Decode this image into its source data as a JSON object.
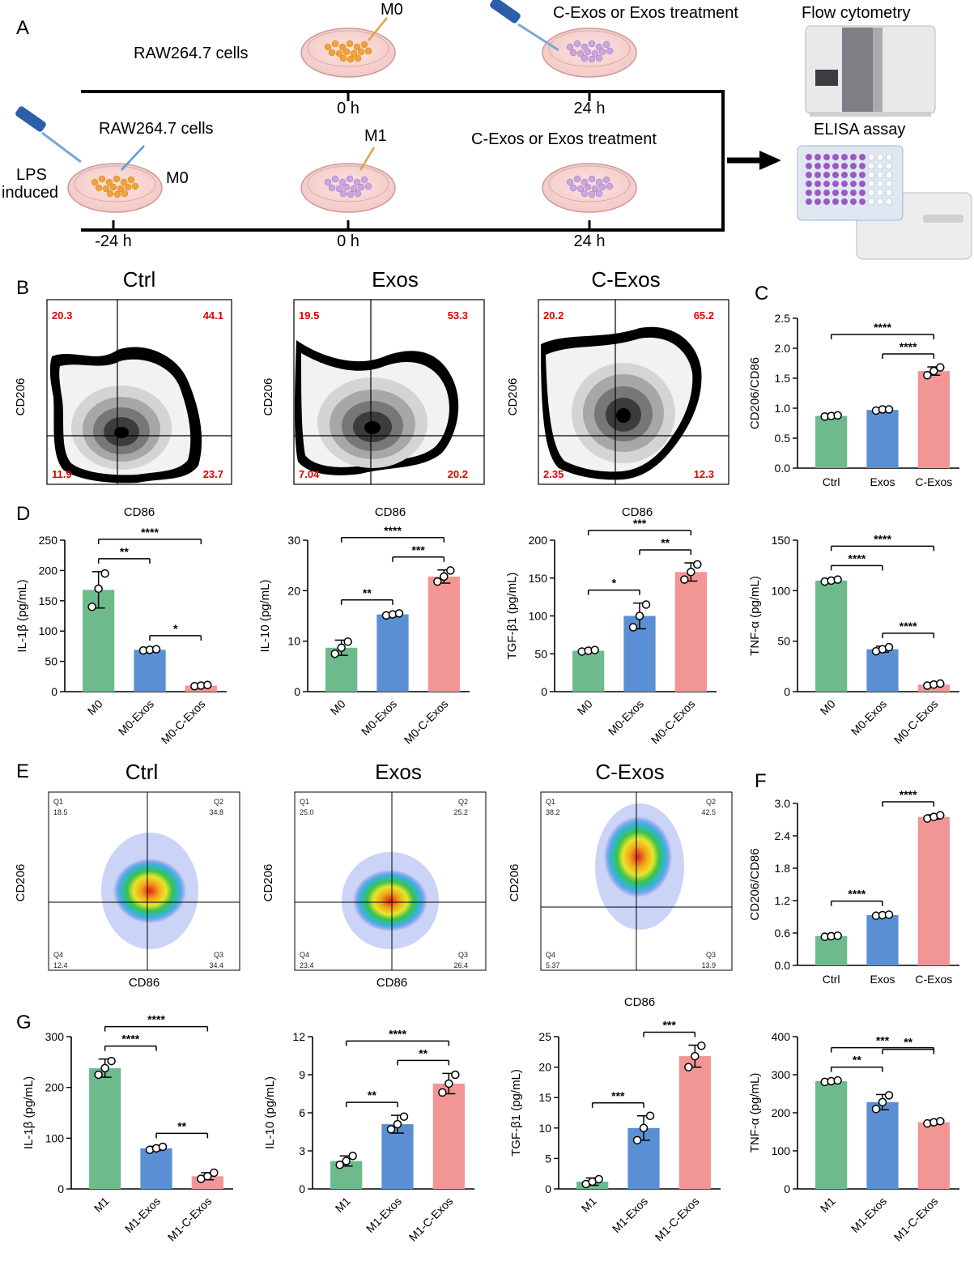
{
  "figure": {
    "panels": {
      "A": "A",
      "B": "B",
      "C": "C",
      "D": "D",
      "E": "E",
      "F": "F",
      "G": "G"
    },
    "scheme": {
      "top": {
        "cells_label": "RAW264.7 cells",
        "m0_label": "M0",
        "treatment_label": "C-Exos or Exos treatment",
        "time_0": "0 h",
        "time_24": "24 h"
      },
      "bottom": {
        "cells_label": "RAW264.7 cells",
        "lps_label_1": "LPS",
        "lps_label_2": "induced",
        "m0_label": "M0",
        "m1_label": "M1",
        "treatment_label": "C-Exos or Exos treatment",
        "time_neg24": "-24 h",
        "time_0": "0 h",
        "time_24": "24 h"
      },
      "flow_label": "Flow cytometry",
      "elisa_label": "ELISA assay"
    },
    "flow_B": {
      "xlabel": "CD86",
      "ylabel": "CD206",
      "plots": [
        {
          "title": "Ctrl",
          "q1": "20.3",
          "q2": "44.1",
          "q4": "11.9",
          "q3": "23.7"
        },
        {
          "title": "Exos",
          "q1": "19.5",
          "q2": "53.3",
          "q4": "7.04",
          "q3": "20.2"
        },
        {
          "title": "C-Exos",
          "q1": "20.2",
          "q2": "65.2",
          "q4": "2.35",
          "q3": "12.3"
        }
      ]
    },
    "flow_E": {
      "xlabel": "CD86",
      "ylabel": "CD206",
      "plots": [
        {
          "title": "Ctrl",
          "q1n": "Q1",
          "q1": "18.5",
          "q2n": "Q2",
          "q2": "34.8",
          "q4n": "Q4",
          "q4": "12.4",
          "q3n": "Q3",
          "q3": "34.4"
        },
        {
          "title": "Exos",
          "q1n": "Q1",
          "q1": "25.0",
          "q2n": "Q2",
          "q2": "25.2",
          "q4n": "Q4",
          "q4": "23.4",
          "q3n": "Q3",
          "q3": "26.4"
        },
        {
          "title": "C-Exos",
          "q1n": "Q1",
          "q1": "38.2",
          "q2n": "Q2",
          "q2": "42.5",
          "q4n": "Q4",
          "q4": "5.37",
          "q3n": "Q3",
          "q3": "13.9"
        }
      ]
    },
    "colors": {
      "green": "#6dbb8c",
      "blue": "#5b8fd4",
      "red": "#f29595"
    }
  },
  "chart_data": [
    {
      "id": "C",
      "type": "bar",
      "ylabel": "CD206/CD86",
      "categories": [
        "Ctrl",
        "Exos",
        "C-Exos"
      ],
      "values": [
        0.87,
        0.97,
        1.62
      ],
      "errors": [
        0.02,
        0.03,
        0.07
      ],
      "points": [
        [
          0.86,
          0.87,
          0.88
        ],
        [
          0.96,
          0.98,
          0.98
        ],
        [
          1.55,
          1.62,
          1.68
        ]
      ],
      "ylim": [
        0,
        2.5
      ],
      "yticks": [
        "0.0",
        "0.5",
        "1.0",
        "1.5",
        "2.0",
        "2.5"
      ],
      "rotate": false,
      "brackets": [
        {
          "from": 0,
          "to": 2,
          "label": "****"
        },
        {
          "from": 1,
          "to": 2,
          "label": "****"
        }
      ]
    },
    {
      "id": "D1",
      "type": "bar",
      "ylabel": "IL-1β (pg/mL)",
      "categories": [
        "M0",
        "M0-Exos",
        "M0-C-Exos"
      ],
      "values": [
        168,
        69,
        10
      ],
      "errors": [
        30,
        2,
        2
      ],
      "points": [
        [
          140,
          170,
          195
        ],
        [
          68,
          69,
          70
        ],
        [
          9,
          10,
          11
        ]
      ],
      "ylim": [
        0,
        250
      ],
      "yticks": [
        "0",
        "50",
        "100",
        "150",
        "200",
        "250"
      ],
      "rotate": true,
      "brackets": [
        {
          "from": 0,
          "to": 2,
          "label": "****"
        },
        {
          "from": 0,
          "to": 1,
          "label": "**"
        },
        {
          "from": 1,
          "to": 2,
          "label": "*"
        }
      ]
    },
    {
      "id": "D2",
      "type": "bar",
      "ylabel": "IL-10 (pg/mL)",
      "categories": [
        "M0",
        "M0-Exos",
        "M0-C-Exos"
      ],
      "values": [
        8.7,
        15.3,
        22.8
      ],
      "errors": [
        1.5,
        0.3,
        1.3
      ],
      "points": [
        [
          7.5,
          8.7,
          9.9
        ],
        [
          15.1,
          15.3,
          15.5
        ],
        [
          21.8,
          22.8,
          24.0
        ]
      ],
      "ylim": [
        0,
        30
      ],
      "yticks": [
        "0",
        "10",
        "20",
        "30"
      ],
      "rotate": true,
      "brackets": [
        {
          "from": 0,
          "to": 2,
          "label": "****"
        },
        {
          "from": 1,
          "to": 2,
          "label": "***"
        },
        {
          "from": 0,
          "to": 1,
          "label": "**"
        }
      ]
    },
    {
      "id": "D3",
      "type": "bar",
      "ylabel": "TGF-β1 (pg/mL)",
      "categories": [
        "M0",
        "M0-Exos",
        "M0-C-Exos"
      ],
      "values": [
        54,
        100,
        158
      ],
      "errors": [
        2,
        17,
        12
      ],
      "points": [
        [
          53,
          54,
          55
        ],
        [
          85,
          100,
          115
        ],
        [
          148,
          158,
          168
        ]
      ],
      "ylim": [
        0,
        200
      ],
      "yticks": [
        "0",
        "50",
        "100",
        "150",
        "200"
      ],
      "rotate": true,
      "brackets": [
        {
          "from": 0,
          "to": 2,
          "label": "***"
        },
        {
          "from": 1,
          "to": 2,
          "label": "**"
        },
        {
          "from": 0,
          "to": 1,
          "label": "*"
        }
      ]
    },
    {
      "id": "D4",
      "type": "bar",
      "ylabel": "TNF-α (pg/mL)",
      "categories": [
        "M0",
        "M0-Exos",
        "M0-C-Exos"
      ],
      "values": [
        110,
        42,
        7
      ],
      "errors": [
        2,
        3,
        1.5
      ],
      "points": [
        [
          109,
          110,
          111
        ],
        [
          40,
          42,
          44
        ],
        [
          6,
          7,
          8
        ]
      ],
      "ylim": [
        0,
        150
      ],
      "yticks": [
        "0",
        "50",
        "100",
        "150"
      ],
      "rotate": true,
      "brackets": [
        {
          "from": 0,
          "to": 2,
          "label": "****"
        },
        {
          "from": 0,
          "to": 1,
          "label": "****"
        },
        {
          "from": 1,
          "to": 2,
          "label": "****"
        }
      ]
    },
    {
      "id": "F",
      "type": "bar",
      "ylabel": "CD206/CD86",
      "categories": [
        "Ctrl",
        "Exos",
        "C-Exos"
      ],
      "values": [
        0.54,
        0.93,
        2.75
      ],
      "errors": [
        0.02,
        0.02,
        0.04
      ],
      "points": [
        [
          0.53,
          0.54,
          0.55
        ],
        [
          0.92,
          0.93,
          0.94
        ],
        [
          2.72,
          2.75,
          2.78
        ]
      ],
      "ylim": [
        0,
        3.0
      ],
      "yticks": [
        "0.0",
        "0.6",
        "1.2",
        "1.8",
        "2.4",
        "3.0"
      ],
      "rotate": false,
      "brackets": [
        {
          "from": 1,
          "to": 2,
          "label": "****"
        },
        {
          "from": 0,
          "to": 1,
          "label": "****"
        }
      ]
    },
    {
      "id": "G1",
      "type": "bar",
      "ylabel": "IL-1β (pg/mL)",
      "categories": [
        "M1",
        "M1-Exos",
        "M1-C-Exos"
      ],
      "values": [
        238,
        80,
        25
      ],
      "errors": [
        18,
        4,
        7
      ],
      "points": [
        [
          225,
          238,
          252
        ],
        [
          77,
          80,
          83
        ],
        [
          20,
          25,
          32
        ]
      ],
      "ylim": [
        0,
        300
      ],
      "yticks": [
        "0",
        "100",
        "200",
        "300"
      ],
      "rotate": true,
      "brackets": [
        {
          "from": 0,
          "to": 2,
          "label": "****"
        },
        {
          "from": 0,
          "to": 1,
          "label": "****"
        },
        {
          "from": 1,
          "to": 2,
          "label": "**"
        }
      ]
    },
    {
      "id": "G2",
      "type": "bar",
      "ylabel": "IL-10 (pg/mL)",
      "categories": [
        "M1",
        "M1-Exos",
        "M1-C-Exos"
      ],
      "values": [
        2.2,
        5.1,
        8.3
      ],
      "errors": [
        0.4,
        0.7,
        0.8
      ],
      "points": [
        [
          1.9,
          2.2,
          2.6
        ],
        [
          4.7,
          5.1,
          5.7
        ],
        [
          7.6,
          8.3,
          9.0
        ]
      ],
      "ylim": [
        0,
        12
      ],
      "yticks": [
        "0",
        "3",
        "6",
        "9",
        "12"
      ],
      "rotate": true,
      "brackets": [
        {
          "from": 0,
          "to": 2,
          "label": "****"
        },
        {
          "from": 1,
          "to": 2,
          "label": "**"
        },
        {
          "from": 0,
          "to": 1,
          "label": "**"
        }
      ]
    },
    {
      "id": "G3",
      "type": "bar",
      "ylabel": "TGF-β1 (pg/mL)",
      "categories": [
        "M1",
        "M1-Exos",
        "M1-C-Exos"
      ],
      "values": [
        1.2,
        10,
        21.8
      ],
      "errors": [
        0.6,
        2.0,
        1.8
      ],
      "points": [
        [
          0.8,
          1.2,
          1.6
        ],
        [
          8,
          10,
          12
        ],
        [
          20,
          21.8,
          23.5
        ]
      ],
      "ylim": [
        0,
        25
      ],
      "yticks": [
        "0",
        "5",
        "10",
        "15",
        "20",
        "25"
      ],
      "rotate": true,
      "brackets": [
        {
          "from": 1,
          "to": 2,
          "label": "***"
        },
        {
          "from": 0,
          "to": 1,
          "label": "***"
        }
      ]
    },
    {
      "id": "G4",
      "type": "bar",
      "ylabel": "TNF-α (pg/mL)",
      "categories": [
        "M1",
        "M1-Exos",
        "M1-C-Exos"
      ],
      "values": [
        283,
        228,
        175
      ],
      "errors": [
        3,
        20,
        5
      ],
      "points": [
        [
          281,
          283,
          285
        ],
        [
          210,
          228,
          246
        ],
        [
          172,
          175,
          178
        ]
      ],
      "ylim": [
        0,
        400
      ],
      "yticks": [
        "0",
        "100",
        "200",
        "300",
        "400"
      ],
      "rotate": true,
      "brackets": [
        {
          "from": 0,
          "to": 2,
          "label": "***"
        },
        {
          "from": 0,
          "to": 1,
          "label": "**"
        },
        {
          "from": 1,
          "to": 2,
          "label": "**"
        }
      ]
    }
  ]
}
